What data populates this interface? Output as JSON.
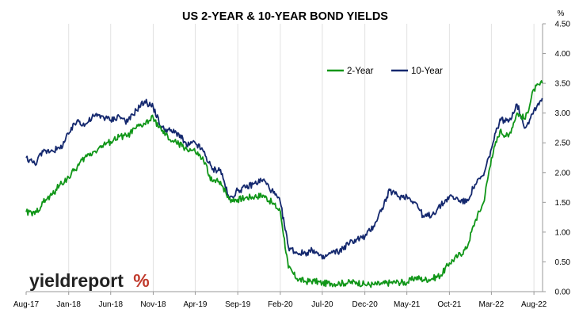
{
  "chart_data": {
    "type": "line",
    "title": "US 2-YEAR & 10-YEAR BOND YIELDS",
    "y_unit": "%",
    "ylim": [
      0,
      4.5
    ],
    "y_ticks": [
      "0.00",
      "0.50",
      "1.00",
      "1.50",
      "2.00",
      "2.50",
      "3.00",
      "3.50",
      "4.00",
      "4.50"
    ],
    "x_range": [
      "2017-08",
      "2022-09"
    ],
    "x_ticks": [
      {
        "label": "Aug-17",
        "date": "2017-08"
      },
      {
        "label": "Jan-18",
        "date": "2018-01"
      },
      {
        "label": "Jun-18",
        "date": "2018-06"
      },
      {
        "label": "Nov-18",
        "date": "2018-11"
      },
      {
        "label": "Apr-19",
        "date": "2019-04"
      },
      {
        "label": "Sep-19",
        "date": "2019-09"
      },
      {
        "label": "Feb-20",
        "date": "2020-02"
      },
      {
        "label": "Jul-20",
        "date": "2020-07"
      },
      {
        "label": "Dec-20",
        "date": "2020-12"
      },
      {
        "label": "May-21",
        "date": "2021-05"
      },
      {
        "label": "Oct-21",
        "date": "2021-10"
      },
      {
        "label": "Mar-22",
        "date": "2022-03"
      },
      {
        "label": "Aug-22",
        "date": "2022-08"
      }
    ],
    "grid": "vertical only",
    "legend_position": "top-right",
    "series": [
      {
        "name": "2-Year",
        "color": "#109618",
        "points": [
          [
            "2017-08-01",
            1.34
          ],
          [
            "2017-09-01",
            1.3
          ],
          [
            "2017-10-01",
            1.5
          ],
          [
            "2017-11-01",
            1.62
          ],
          [
            "2017-12-01",
            1.8
          ],
          [
            "2018-01-01",
            1.92
          ],
          [
            "2018-02-01",
            2.1
          ],
          [
            "2018-03-01",
            2.26
          ],
          [
            "2018-04-01",
            2.35
          ],
          [
            "2018-05-01",
            2.45
          ],
          [
            "2018-06-01",
            2.52
          ],
          [
            "2018-07-01",
            2.6
          ],
          [
            "2018-08-01",
            2.62
          ],
          [
            "2018-09-01",
            2.75
          ],
          [
            "2018-10-01",
            2.82
          ],
          [
            "2018-11-01",
            2.92
          ],
          [
            "2018-12-01",
            2.7
          ],
          [
            "2019-01-01",
            2.55
          ],
          [
            "2019-02-01",
            2.48
          ],
          [
            "2019-03-01",
            2.4
          ],
          [
            "2019-04-01",
            2.35
          ],
          [
            "2019-05-01",
            2.2
          ],
          [
            "2019-06-01",
            1.85
          ],
          [
            "2019-07-01",
            1.85
          ],
          [
            "2019-08-01",
            1.55
          ],
          [
            "2019-09-01",
            1.55
          ],
          [
            "2019-10-01",
            1.58
          ],
          [
            "2019-11-01",
            1.6
          ],
          [
            "2019-12-01",
            1.62
          ],
          [
            "2020-01-01",
            1.5
          ],
          [
            "2020-02-01",
            1.35
          ],
          [
            "2020-03-01",
            0.4
          ],
          [
            "2020-04-01",
            0.22
          ],
          [
            "2020-05-01",
            0.17
          ],
          [
            "2020-06-01",
            0.18
          ],
          [
            "2020-07-01",
            0.14
          ],
          [
            "2020-08-01",
            0.14
          ],
          [
            "2020-09-01",
            0.14
          ],
          [
            "2020-10-01",
            0.15
          ],
          [
            "2020-11-01",
            0.16
          ],
          [
            "2020-12-01",
            0.12
          ],
          [
            "2021-01-01",
            0.12
          ],
          [
            "2021-02-01",
            0.13
          ],
          [
            "2021-03-01",
            0.15
          ],
          [
            "2021-04-01",
            0.16
          ],
          [
            "2021-05-01",
            0.15
          ],
          [
            "2021-06-01",
            0.24
          ],
          [
            "2021-07-01",
            0.2
          ],
          [
            "2021-08-01",
            0.22
          ],
          [
            "2021-09-01",
            0.28
          ],
          [
            "2021-10-01",
            0.48
          ],
          [
            "2021-11-01",
            0.6
          ],
          [
            "2021-12-01",
            0.72
          ],
          [
            "2022-01-01",
            1.18
          ],
          [
            "2022-02-01",
            1.5
          ],
          [
            "2022-03-01",
            2.25
          ],
          [
            "2022-04-01",
            2.7
          ],
          [
            "2022-05-01",
            2.6
          ],
          [
            "2022-06-01",
            3.0
          ],
          [
            "2022-07-01",
            2.9
          ],
          [
            "2022-08-01",
            3.4
          ],
          [
            "2022-08-31",
            3.5
          ]
        ]
      },
      {
        "name": "10-Year",
        "color": "#14286e",
        "points": [
          [
            "2017-08-01",
            2.25
          ],
          [
            "2017-09-01",
            2.15
          ],
          [
            "2017-10-01",
            2.35
          ],
          [
            "2017-11-01",
            2.38
          ],
          [
            "2017-12-01",
            2.4
          ],
          [
            "2018-01-01",
            2.65
          ],
          [
            "2018-02-01",
            2.88
          ],
          [
            "2018-03-01",
            2.8
          ],
          [
            "2018-04-01",
            2.95
          ],
          [
            "2018-05-01",
            2.95
          ],
          [
            "2018-06-01",
            2.88
          ],
          [
            "2018-07-01",
            2.95
          ],
          [
            "2018-08-01",
            2.85
          ],
          [
            "2018-09-01",
            3.05
          ],
          [
            "2018-10-01",
            3.2
          ],
          [
            "2018-11-01",
            3.1
          ],
          [
            "2018-12-01",
            2.75
          ],
          [
            "2019-01-01",
            2.7
          ],
          [
            "2019-02-01",
            2.65
          ],
          [
            "2019-03-01",
            2.45
          ],
          [
            "2019-04-01",
            2.5
          ],
          [
            "2019-05-01",
            2.35
          ],
          [
            "2019-06-01",
            2.05
          ],
          [
            "2019-07-01",
            2.05
          ],
          [
            "2019-08-01",
            1.55
          ],
          [
            "2019-09-01",
            1.7
          ],
          [
            "2019-10-01",
            1.75
          ],
          [
            "2019-11-01",
            1.82
          ],
          [
            "2019-12-01",
            1.88
          ],
          [
            "2020-01-01",
            1.7
          ],
          [
            "2020-02-01",
            1.5
          ],
          [
            "2020-03-01",
            0.75
          ],
          [
            "2020-04-01",
            0.65
          ],
          [
            "2020-05-01",
            0.65
          ],
          [
            "2020-06-01",
            0.7
          ],
          [
            "2020-07-01",
            0.55
          ],
          [
            "2020-08-01",
            0.65
          ],
          [
            "2020-09-01",
            0.68
          ],
          [
            "2020-10-01",
            0.8
          ],
          [
            "2020-11-01",
            0.88
          ],
          [
            "2020-12-01",
            0.92
          ],
          [
            "2021-01-01",
            1.1
          ],
          [
            "2021-02-01",
            1.4
          ],
          [
            "2021-03-01",
            1.7
          ],
          [
            "2021-04-01",
            1.6
          ],
          [
            "2021-05-01",
            1.6
          ],
          [
            "2021-06-01",
            1.5
          ],
          [
            "2021-07-01",
            1.25
          ],
          [
            "2021-08-01",
            1.3
          ],
          [
            "2021-09-01",
            1.45
          ],
          [
            "2021-10-01",
            1.6
          ],
          [
            "2021-11-01",
            1.55
          ],
          [
            "2021-12-01",
            1.5
          ],
          [
            "2022-01-01",
            1.8
          ],
          [
            "2022-02-01",
            1.95
          ],
          [
            "2022-03-01",
            2.4
          ],
          [
            "2022-04-01",
            2.9
          ],
          [
            "2022-05-01",
            2.85
          ],
          [
            "2022-06-01",
            3.15
          ],
          [
            "2022-07-01",
            2.75
          ],
          [
            "2022-08-01",
            3.05
          ],
          [
            "2022-08-31",
            3.25
          ]
        ]
      }
    ]
  },
  "branding": {
    "logo_text": "yieldreport",
    "logo_symbol": "%"
  }
}
